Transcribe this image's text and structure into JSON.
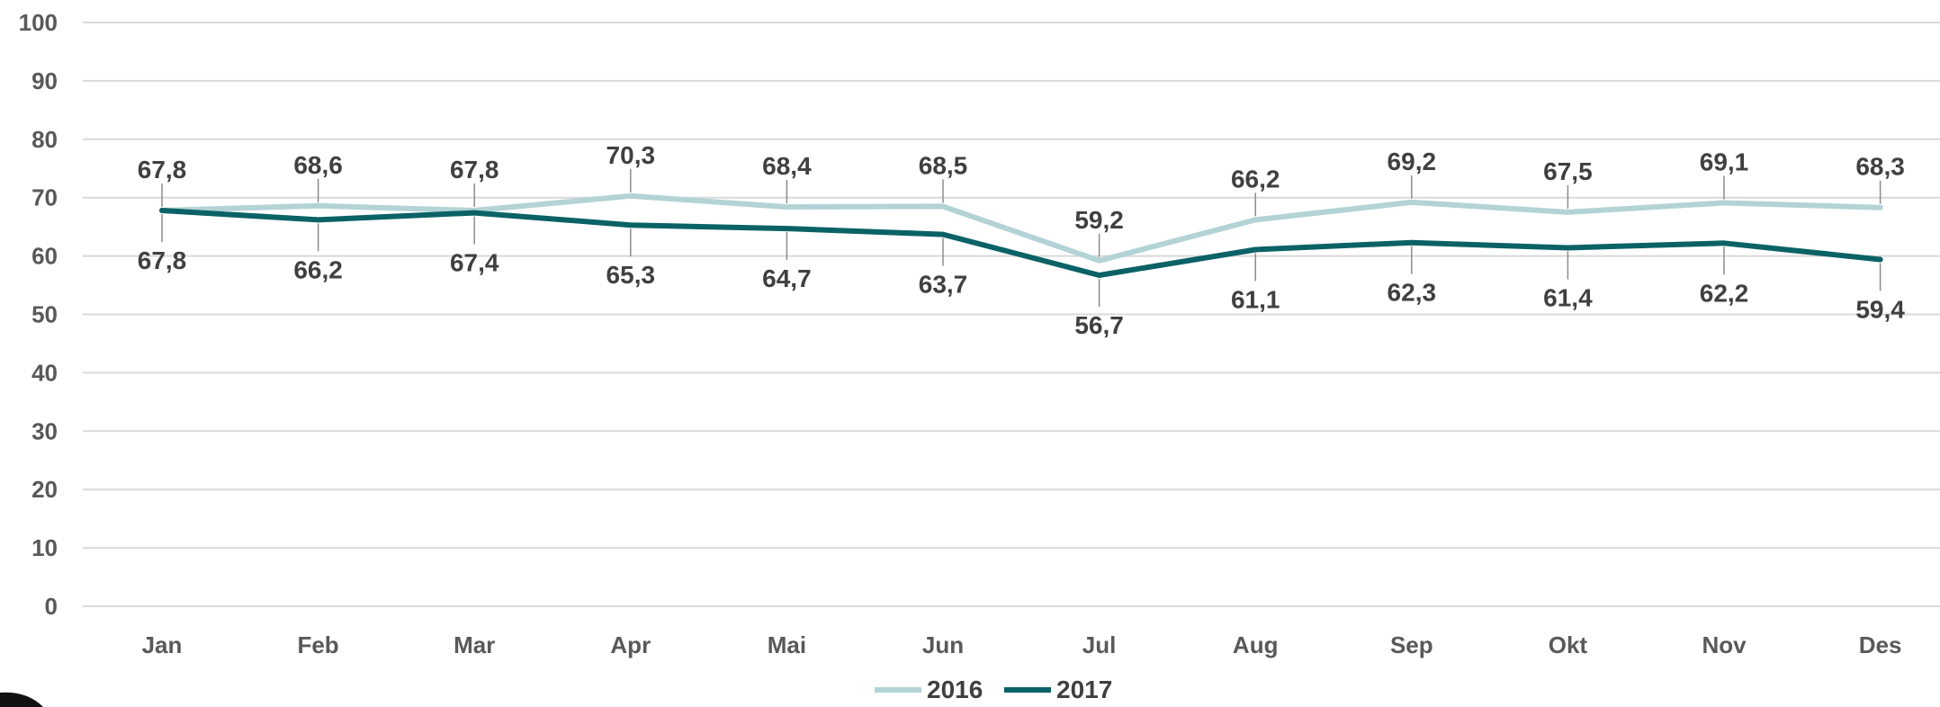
{
  "chart_data": {
    "type": "line",
    "categories": [
      "Jan",
      "Feb",
      "Mar",
      "Apr",
      "Mai",
      "Jun",
      "Jul",
      "Aug",
      "Sep",
      "Okt",
      "Nov",
      "Des"
    ],
    "series": [
      {
        "name": "2016",
        "color": "#b3d3d6",
        "values": [
          67.8,
          68.6,
          67.8,
          70.3,
          68.4,
          68.5,
          59.2,
          66.2,
          69.2,
          67.5,
          69.1,
          68.3
        ]
      },
      {
        "name": "2017",
        "color": "#0b6266",
        "values": [
          67.8,
          66.2,
          67.4,
          65.3,
          64.7,
          63.7,
          56.7,
          61.1,
          62.3,
          61.4,
          62.2,
          59.4
        ]
      }
    ],
    "data_labels": {
      "2016": [
        "67,8",
        "68,6",
        "67,8",
        "70,3",
        "68,4",
        "68,5",
        "59,2",
        "66,2",
        "69,2",
        "67,5",
        "69,1",
        "68,3"
      ],
      "2017": [
        "67,8",
        "66,2",
        "67,4",
        "65,3",
        "64,7",
        "63,7",
        "56,7",
        "61,1",
        "62,3",
        "61,4",
        "62,2",
        "59,4"
      ]
    },
    "yticks": [
      "0",
      "10",
      "20",
      "30",
      "40",
      "50",
      "60",
      "70",
      "80",
      "90",
      "100"
    ],
    "ylim": [
      0,
      100
    ],
    "grid": true,
    "legend": "bottom-center",
    "title": "",
    "xlabel": "",
    "ylabel": ""
  }
}
